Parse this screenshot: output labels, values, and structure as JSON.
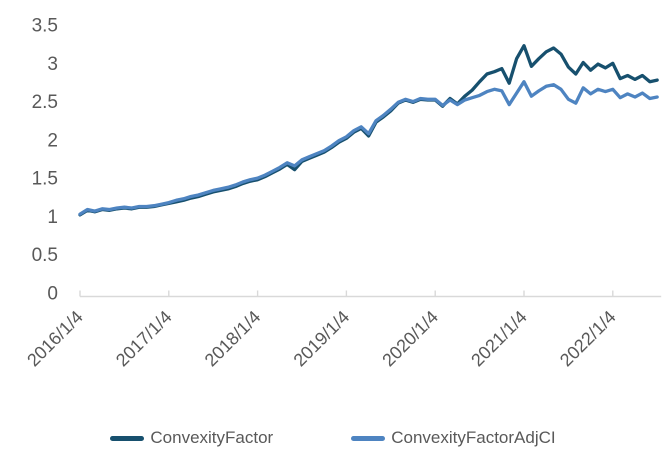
{
  "chart_data": {
    "type": "line",
    "title": "",
    "xlabel": "",
    "ylabel": "",
    "ylim": [
      0,
      3.5
    ],
    "y_ticks": [
      0,
      0.5,
      1,
      1.5,
      2,
      2.5,
      3,
      3.5
    ],
    "x_tick_labels": [
      "2016/1/4",
      "2017/1/4",
      "2018/1/4",
      "2019/1/4",
      "2020/1/4",
      "2021/1/4",
      "2022/1/4"
    ],
    "x_sampling": "monthly from 2016/1 to 2022/7",
    "grid": false,
    "legend_position": "bottom",
    "series": [
      {
        "name": "ConvexityFactor",
        "color": "#17506e",
        "values": [
          1.02,
          1.08,
          1.06,
          1.09,
          1.08,
          1.1,
          1.11,
          1.1,
          1.12,
          1.12,
          1.13,
          1.15,
          1.17,
          1.19,
          1.21,
          1.24,
          1.26,
          1.29,
          1.32,
          1.34,
          1.36,
          1.39,
          1.43,
          1.46,
          1.48,
          1.52,
          1.57,
          1.62,
          1.68,
          1.61,
          1.72,
          1.76,
          1.8,
          1.84,
          1.9,
          1.97,
          2.02,
          2.1,
          2.15,
          2.05,
          2.23,
          2.3,
          2.38,
          2.48,
          2.52,
          2.49,
          2.53,
          2.52,
          2.52,
          2.44,
          2.54,
          2.47,
          2.57,
          2.65,
          2.76,
          2.86,
          2.89,
          2.93,
          2.74,
          3.06,
          3.23,
          2.96,
          3.06,
          3.15,
          3.2,
          3.12,
          2.95,
          2.86,
          3.01,
          2.91,
          2.99,
          2.94,
          3.0,
          2.8,
          2.84,
          2.79,
          2.84,
          2.76,
          2.78
        ]
      },
      {
        "name": "ConvexityFactorAdjCI",
        "color": "#4e84c1",
        "values": [
          1.03,
          1.09,
          1.07,
          1.1,
          1.09,
          1.11,
          1.12,
          1.11,
          1.13,
          1.13,
          1.14,
          1.16,
          1.18,
          1.21,
          1.23,
          1.26,
          1.28,
          1.31,
          1.34,
          1.36,
          1.38,
          1.41,
          1.45,
          1.48,
          1.5,
          1.54,
          1.59,
          1.64,
          1.7,
          1.66,
          1.74,
          1.78,
          1.82,
          1.86,
          1.92,
          1.99,
          2.04,
          2.12,
          2.17,
          2.08,
          2.25,
          2.32,
          2.4,
          2.49,
          2.53,
          2.5,
          2.54,
          2.53,
          2.53,
          2.45,
          2.52,
          2.46,
          2.52,
          2.55,
          2.58,
          2.63,
          2.66,
          2.64,
          2.46,
          2.61,
          2.76,
          2.57,
          2.64,
          2.7,
          2.72,
          2.66,
          2.53,
          2.48,
          2.68,
          2.6,
          2.66,
          2.63,
          2.66,
          2.55,
          2.6,
          2.56,
          2.61,
          2.54,
          2.56
        ]
      }
    ]
  },
  "legend": {
    "items": [
      {
        "label": "ConvexityFactor",
        "color": "#17506e"
      },
      {
        "label": "ConvexityFactorAdjCI",
        "color": "#4e84c1"
      }
    ]
  },
  "style": {
    "axis_line_color": "#d9d9d9",
    "tick_text_color": "#595959",
    "background": "#ffffff"
  }
}
